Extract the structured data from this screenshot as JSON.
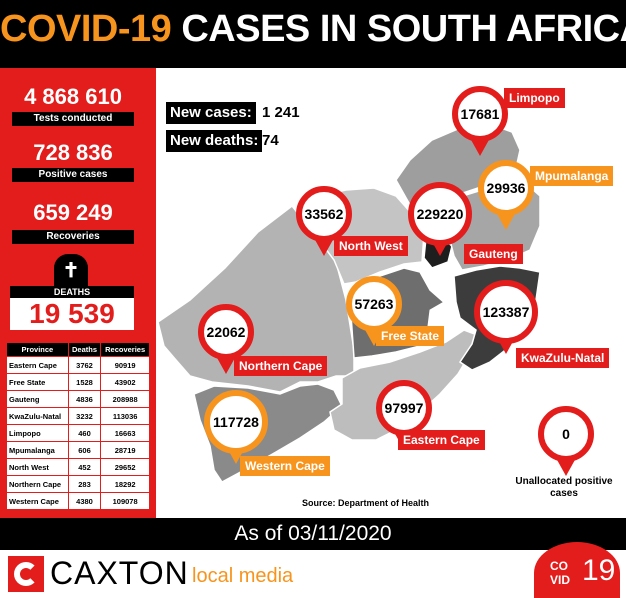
{
  "header": {
    "title_highlight": "COVID-19",
    "title_rest": "CASES IN SOUTH AFRICA"
  },
  "stats": {
    "tests_value": "4 868 610",
    "tests_label": "Tests conducted",
    "positive_value": "728 836",
    "positive_label": "Positive cases",
    "recoveries_value": "659 249",
    "recoveries_label": "Recoveries",
    "deaths_label": "DEATHS",
    "deaths_value": "19 539"
  },
  "new": {
    "cases_label": "New cases:",
    "cases_value": "1 241",
    "deaths_label": "New deaths:",
    "deaths_value": "74"
  },
  "table": {
    "headers": [
      "Province",
      "Deaths",
      "Recoveries"
    ],
    "rows": [
      [
        "Eastern Cape",
        "3762",
        "90919"
      ],
      [
        "Free State",
        "1528",
        "43902"
      ],
      [
        "Gauteng",
        "4836",
        "208988"
      ],
      [
        "KwaZulu-Natal",
        "3232",
        "113036"
      ],
      [
        "Limpopo",
        "460",
        "16663"
      ],
      [
        "Mpumalanga",
        "606",
        "28719"
      ],
      [
        "North West",
        "452",
        "29652"
      ],
      [
        "Northern Cape",
        "283",
        "18292"
      ],
      [
        "Western Cape",
        "4380",
        "109078"
      ]
    ]
  },
  "pins": {
    "limpopo": {
      "value": "17681",
      "label": "Limpopo"
    },
    "mpumalanga": {
      "value": "29936",
      "label": "Mpumalanga"
    },
    "north_west": {
      "value": "33562",
      "label": "North West"
    },
    "gauteng": {
      "value": "229220",
      "label": "Gauteng"
    },
    "free_state": {
      "value": "57263",
      "label": "Free State"
    },
    "kwazulu_natal": {
      "value": "123387",
      "label": "KwaZulu-Natal"
    },
    "northern_cape": {
      "value": "22062",
      "label": "Northern Cape"
    },
    "western_cape": {
      "value": "117728",
      "label": "Western Cape"
    },
    "eastern_cape": {
      "value": "97997",
      "label": "Eastern Cape"
    },
    "unallocated": {
      "value": "0",
      "label": "Unallocated positive cases"
    }
  },
  "source": "Source: Department of Health",
  "date": "As of 03/11/2020",
  "footer": {
    "brand": "CAXTON",
    "sub": "local media",
    "badge_line1": "CO",
    "badge_line2": "VID",
    "badge_num": "19"
  },
  "colors": {
    "red": "#e31c1c",
    "orange": "#f7941d",
    "black": "#000000"
  }
}
